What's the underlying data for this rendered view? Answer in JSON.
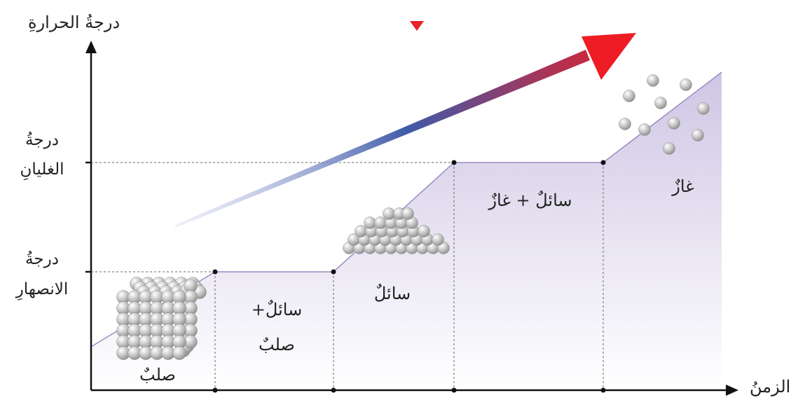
{
  "header": {
    "caption": "",
    "marker_color": "#e8212b"
  },
  "axes": {
    "y_label": "درجةُ الحرارةِ",
    "x_label": "الزمنُ",
    "boiling_point_label_line1": "درجةُ",
    "boiling_point_label_line2": "الغليانِ",
    "melting_point_label_line1": "درجةُ",
    "melting_point_label_line2": "الانصهارِ"
  },
  "regions": {
    "solid": "صلبٌ",
    "solid_liquid_line1": "سائلٌ+",
    "solid_liquid_line2": "صلبٌ",
    "liquid": "سائلٌ",
    "liquid_gas": "سائلٌ + غازٌ",
    "gas": "غازٌ"
  },
  "colors": {
    "fill_top": "#c9bfe0",
    "fill_bottom": "#ffffff",
    "curve": "#9a8cc4",
    "arrow_start": "#c9cde8",
    "arrow_mid": "#3f5aa8",
    "arrow_end": "#ee1c24",
    "particle": "#b8b8b8"
  },
  "icons": [
    "solid-particles-cube-icon",
    "liquid-particles-heap-icon",
    "gas-particles-scatter-icon",
    "increase-arrow-icon",
    "down-marker-icon"
  ]
}
